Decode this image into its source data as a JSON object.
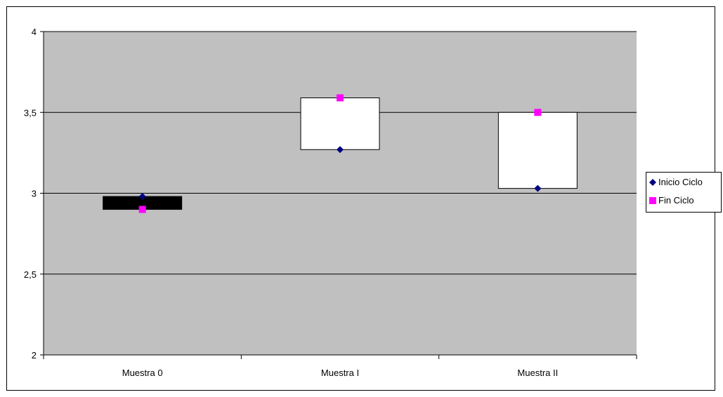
{
  "chart_data": {
    "type": "candlestick",
    "categories": [
      "Muestra 0",
      "Muestra I",
      "Muestra II"
    ],
    "series": [
      {
        "name": "Inicio Ciclo",
        "values": [
          2.98,
          3.27,
          3.03
        ],
        "color": "#000080",
        "marker": "diamond"
      },
      {
        "name": "Fin Ciclo",
        "values": [
          2.9,
          3.59,
          3.5
        ],
        "color": "#FF00FF",
        "marker": "square"
      }
    ],
    "up_box_color": "#FFFFFF",
    "down_box_color": "#000000",
    "plot_background": "#C0C0C0",
    "ylim": [
      2,
      4
    ],
    "yticks": [
      2,
      2.5,
      3,
      3.5,
      4
    ],
    "ytick_labels": [
      "2",
      "2,5",
      "3",
      "3,5",
      "4"
    ],
    "grid": true,
    "legend_position": "right",
    "title": "",
    "xlabel": "",
    "ylabel": ""
  }
}
